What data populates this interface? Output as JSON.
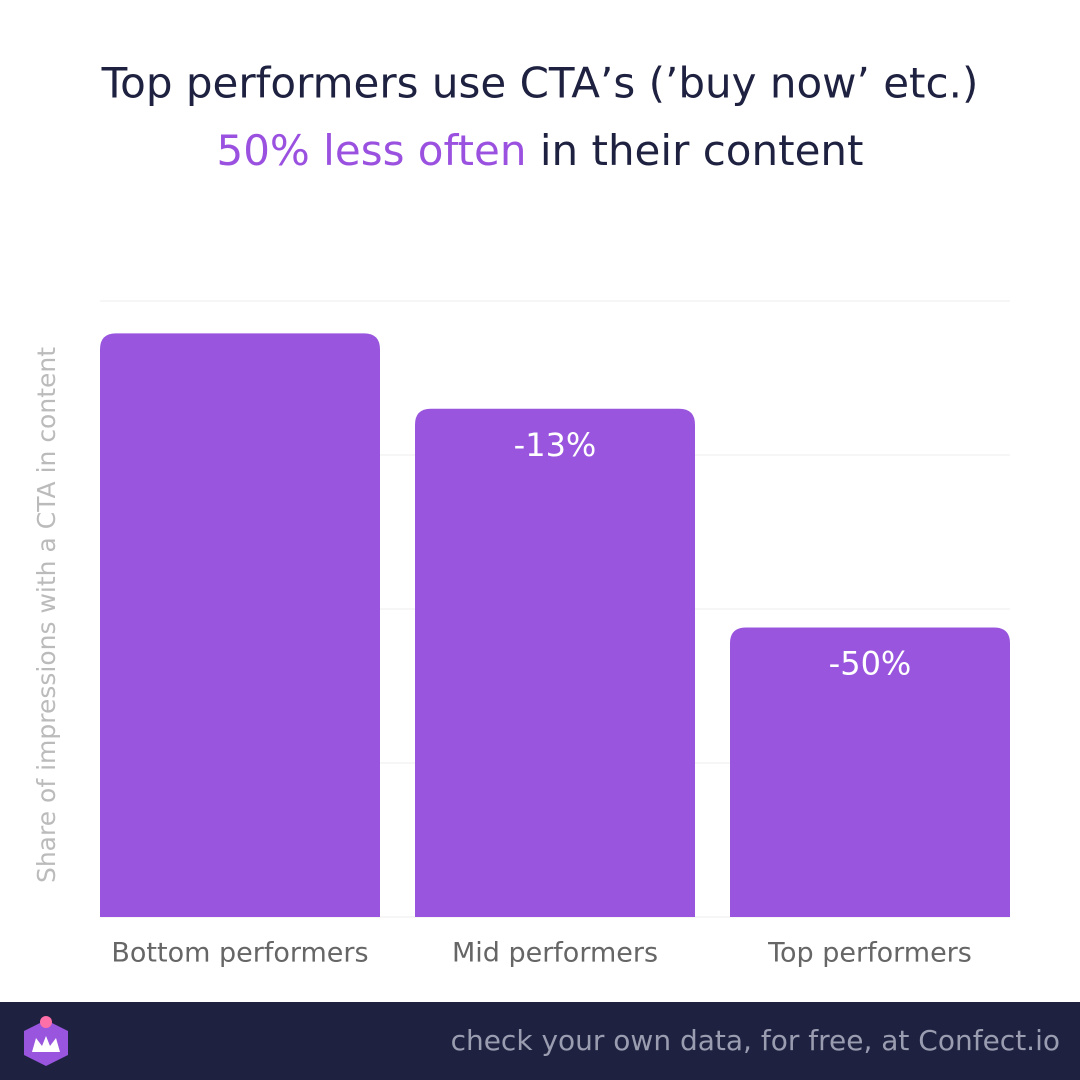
{
  "chart_data": {
    "type": "bar",
    "title": "Top performers use CTA’s (’buy now’ etc.)",
    "subtitle_highlight": "50% less often",
    "subtitle_rest": " in their content",
    "y_label": "Share of impressions with a CTA in content",
    "categories": [
      "Bottom performers",
      "Mid performers",
      "Top performers"
    ],
    "values": [
      3.79,
      3.3,
      1.88
    ],
    "color": "#9955dd",
    "highlight_color": "#9b51e0",
    "ylim": [
      0,
      4
    ],
    "yticks": [
      0,
      1,
      2,
      3,
      4
    ],
    "grid": true,
    "annotations": [
      {
        "category": "Mid performers",
        "text": "-13%"
      },
      {
        "category": "Top performers",
        "text": "-50%"
      }
    ],
    "footer": "check your own data, for free, at Confect.io"
  }
}
